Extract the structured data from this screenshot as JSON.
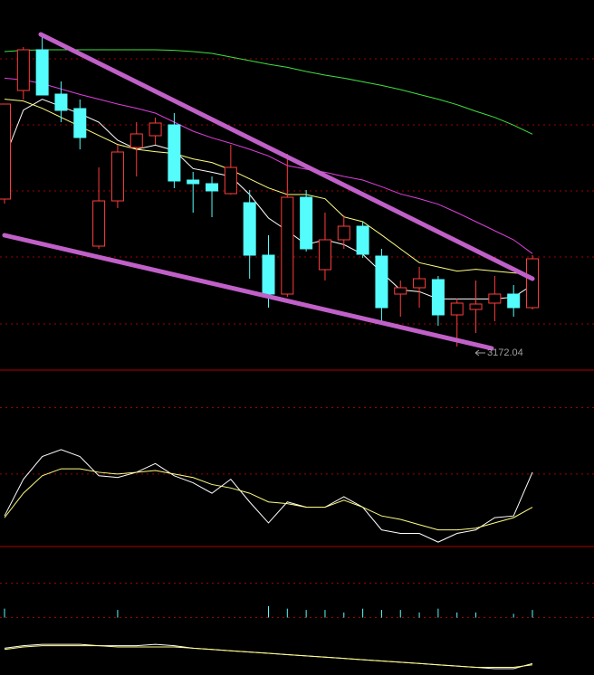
{
  "chart_data": [
    {
      "type": "candlestick",
      "categories": [
        null,
        null,
        null,
        null,
        null,
        null,
        null,
        null,
        null,
        null,
        null,
        null,
        null,
        null,
        null,
        null,
        null,
        null,
        null,
        null,
        null,
        null,
        null,
        null,
        null,
        null,
        null,
        null,
        null
      ],
      "open": [
        3416.5,
        3596.5,
        3664,
        3590.5,
        3566.5,
        3338.5,
        3413.5,
        3502,
        3521.5,
        3539.5,
        3448,
        3442,
        3425.5,
        3410.5,
        3323.5,
        3259,
        3419.5,
        3299.5,
        3349,
        3371.5,
        3322,
        3259,
        3269.5,
        3283,
        3224.5,
        3233.5,
        3244,
        3259,
        3236.5
      ],
      "high": [
        3574,
        3668.5,
        3686.5,
        3611.5,
        3581.5,
        3469,
        3506.5,
        3544,
        3551.5,
        3559,
        3461.5,
        3454,
        3506.5,
        3431.5,
        3356.5,
        3491.5,
        3431.5,
        3394,
        3389.5,
        3379,
        3334,
        3281.5,
        3304,
        3289,
        3251.5,
        3281.5,
        3289,
        3274,
        3323.5
      ],
      "low": [
        3409,
        3581.5,
        3589,
        3544,
        3499,
        3334,
        3401.5,
        3454,
        3506.5,
        3434.5,
        3394,
        3386.5,
        3424,
        3284.5,
        3236.5,
        3254.5,
        3329.5,
        3281.5,
        3334,
        3319,
        3214,
        3221.5,
        3236.5,
        3206.5,
        3172.04,
        3194.5,
        3214,
        3221.5,
        3233.5
      ],
      "close": [
        3574,
        3664,
        3589,
        3563.5,
        3518.5,
        3413.5,
        3494.5,
        3524.5,
        3542.5,
        3446.5,
        3442,
        3430,
        3469,
        3323.5,
        3259,
        3419.5,
        3334,
        3349,
        3371.5,
        3325,
        3236.5,
        3269.5,
        3284.5,
        3224.5,
        3244,
        3242.5,
        3259,
        3236.5,
        3317.5
      ],
      "up_color": "#ff3c3c",
      "down_color": "#54fcfc",
      "series": [
        {
          "color": "#ffffff",
          "values": [
            3484,
            3564,
            3582,
            3570,
            3558,
            3544,
            3514,
            3499,
            3506,
            3497,
            3467,
            3461,
            3454,
            3424,
            3385,
            3364,
            3341,
            3349,
            3341,
            3325,
            3295,
            3266,
            3263,
            3251,
            3251,
            3251,
            3251,
            3254,
            3274
          ]
        },
        {
          "color": "#ffff80",
          "values": [
            3582,
            3579,
            3567,
            3552,
            3537,
            3522,
            3507,
            3499,
            3495,
            3492,
            3483,
            3477,
            3465,
            3450,
            3435,
            3424,
            3424,
            3417,
            3387,
            3379,
            3357,
            3334,
            3311,
            3304,
            3297,
            3300,
            3297,
            3294,
            3292
          ]
        },
        {
          "color": "#e040e0",
          "values": [
            3617,
            3614,
            3608,
            3599,
            3590,
            3582,
            3574,
            3567,
            3559,
            3544,
            3529,
            3518,
            3509,
            3499,
            3488,
            3472,
            3466,
            3461,
            3454,
            3448,
            3437,
            3425,
            3417,
            3408,
            3394,
            3379,
            3364,
            3349,
            3326
          ]
        },
        {
          "color": "#40e040",
          "values": [
            3661,
            3663,
            3664,
            3664,
            3664,
            3664,
            3664,
            3664,
            3664,
            3663,
            3661,
            3658,
            3652,
            3646,
            3640,
            3635,
            3628,
            3622,
            3617,
            3611,
            3605,
            3598,
            3590,
            3582,
            3573,
            3562,
            3552,
            3539,
            3524
          ]
        }
      ],
      "ylim": [
        3134.5,
        3746.5
      ],
      "yticks": [
        3649,
        3539.5,
        3430,
        3320.5,
        3209.5
      ],
      "grid": true,
      "annotation": "3172.04"
    },
    {
      "type": "line",
      "categories": [
        null,
        null,
        null,
        null,
        null,
        null,
        null,
        null,
        null,
        null,
        null,
        null,
        null,
        null,
        null,
        null,
        null,
        null,
        null,
        null,
        null,
        null,
        null,
        null,
        null,
        null,
        null,
        null,
        null
      ],
      "series": [
        {
          "color": "#ffffff",
          "values": [
            17,
            38,
            51,
            55,
            51,
            40,
            39,
            42,
            47,
            40,
            36,
            30,
            38,
            25,
            13,
            25,
            22,
            22,
            28,
            22,
            9,
            7,
            7,
            2,
            7,
            9,
            16,
            17,
            42
          ]
        },
        {
          "color": "#ffff80",
          "values": [
            16,
            30,
            40,
            44,
            44,
            42,
            41,
            42,
            43,
            41,
            39,
            35,
            33,
            30,
            25,
            24,
            22,
            22,
            26,
            22,
            17,
            15,
            12,
            9,
            9,
            10,
            13,
            16,
            22
          ]
        }
      ],
      "ylim": [
        0,
        100
      ],
      "yticks": [
        79,
        41
      ],
      "grid": true
    },
    {
      "type": "bar",
      "categories": [
        null,
        null,
        null,
        null,
        null,
        null,
        null,
        null,
        null,
        null,
        null,
        null,
        null,
        null,
        null,
        null,
        null,
        null,
        null,
        null,
        null,
        null,
        null,
        null,
        null,
        null,
        null,
        null,
        null
      ],
      "values": [
        7,
        0,
        0,
        0,
        0,
        0,
        6,
        0,
        0,
        0,
        0,
        0,
        0,
        0,
        9,
        7,
        6,
        6,
        4,
        7,
        6,
        6,
        4,
        7,
        4,
        4,
        0,
        3,
        6
      ],
      "color": "#54fcfc",
      "series": [
        {
          "color": "#ffffff",
          "values": [
            -24,
            -22,
            -21,
            -21,
            -21,
            -22,
            -22,
            -22,
            -21,
            -22,
            -24,
            -25,
            -26,
            -27,
            -28,
            -29,
            -30,
            -31,
            -32,
            -33,
            -34,
            -35,
            -36,
            -37,
            -38,
            -39,
            -40,
            -40,
            -36
          ]
        },
        {
          "color": "#ffff80",
          "values": [
            -25,
            -23,
            -22,
            -22,
            -22,
            -22,
            -23,
            -23,
            -23,
            -23,
            -24,
            -25,
            -26,
            -27,
            -28,
            -29,
            -30,
            -31,
            -32,
            -33,
            -34,
            -35,
            -36,
            -37,
            -38,
            -39,
            -39,
            -39,
            -37
          ]
        }
      ],
      "ylim": [
        -45,
        55
      ],
      "yticks": [
        27,
        0
      ],
      "grid": true
    }
  ]
}
